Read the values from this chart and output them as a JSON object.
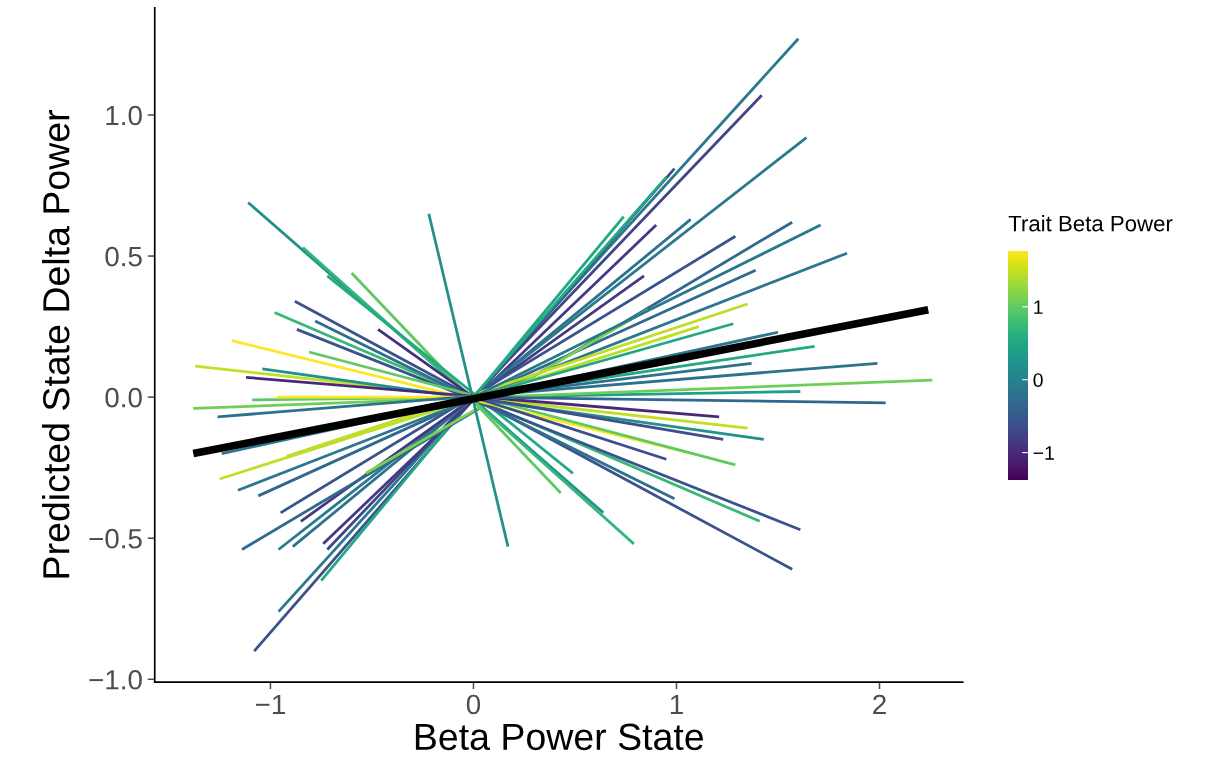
{
  "chart_data": {
    "type": "line",
    "xlabel": "Beta Power State",
    "ylabel": "Predicted State Delta Power",
    "clabel": "Trait Beta Power",
    "clim": [
      -1.38,
      1.77
    ],
    "cticks": [
      {
        "value": -1,
        "label": "−1"
      },
      0,
      1
    ],
    "xlim": [
      -1.57,
      2.41
    ],
    "ylim": [
      -1.01,
      1.38
    ],
    "xticks": [
      {
        "value": -1,
        "label": "−1"
      },
      0,
      1,
      2
    ],
    "yticks": [
      {
        "value": -1.0,
        "label": "−1.0"
      },
      {
        "value": -0.5,
        "label": "−0.5"
      },
      {
        "value": 0,
        "label": "0.0"
      },
      {
        "value": 0.5,
        "label": "0.5"
      },
      {
        "value": 1.0,
        "label": "1.0"
      }
    ],
    "grid": false,
    "legend": false,
    "line_style": "solid",
    "marker": "none",
    "series": [
      {
        "color": "#2a788e",
        "x": [
          -0.96,
          1.6
        ],
        "values": [
          -0.76,
          1.27
        ]
      },
      {
        "color": "#3c518a",
        "x": [
          -1.08,
          0.99
        ],
        "values": [
          -0.9,
          0.81
        ]
      },
      {
        "color": "#22a884",
        "x": [
          -0.75,
          0.74
        ],
        "values": [
          -0.65,
          0.64
        ]
      },
      {
        "color": "#414487",
        "x": [
          -0.72,
          1.42
        ],
        "values": [
          -0.54,
          1.07
        ]
      },
      {
        "color": "#443983",
        "x": [
          -0.74,
          0.9
        ],
        "values": [
          -0.52,
          0.61
        ]
      },
      {
        "color": "#2c728e",
        "x": [
          -0.89,
          1.07
        ],
        "values": [
          -0.53,
          0.63
        ]
      },
      {
        "color": "#29798e",
        "x": [
          -0.96,
          1.64
        ],
        "values": [
          -0.54,
          0.92
        ]
      },
      {
        "color": "#453882",
        "x": [
          -0.85,
          0.84
        ],
        "values": [
          -0.44,
          0.43
        ]
      },
      {
        "color": "#31688e",
        "x": [
          -1.14,
          1.57
        ],
        "values": [
          -0.54,
          0.62
        ]
      },
      {
        "color": "#3a538b",
        "x": [
          -0.95,
          1.29
        ],
        "values": [
          -0.41,
          0.57
        ]
      },
      {
        "color": "#30698e",
        "x": [
          -1.06,
          1.39
        ],
        "values": [
          -0.35,
          0.45
        ]
      },
      {
        "color": "#2b778e",
        "x": [
          -1.16,
          1.84
        ],
        "values": [
          -0.33,
          0.51
        ]
      },
      {
        "color": "#bddf26",
        "x": [
          -1.25,
          1.11
        ],
        "values": [
          -0.29,
          0.25
        ]
      },
      {
        "color": "#7ad151",
        "x": [
          -0.53,
          0.86
        ],
        "values": [
          -0.27,
          0.31
        ]
      },
      {
        "color": "#2a778f",
        "x": [
          -1.24,
          1.5
        ],
        "values": [
          -0.2,
          0.23
        ]
      },
      {
        "color": "#bede27",
        "x": [
          -0.92,
          1.35
        ],
        "values": [
          -0.21,
          0.33
        ]
      },
      {
        "color": "#23a983",
        "x": [
          0,
          0.95
        ],
        "values": [
          0,
          0.78
        ]
      },
      {
        "color": "#28798d",
        "x": [
          0,
          1.71
        ],
        "values": [
          0,
          0.61
        ]
      },
      {
        "color": "#21a785",
        "x": [
          0,
          1.28
        ],
        "values": [
          0,
          0.26
        ]
      },
      {
        "color": "#23a885",
        "x": [
          0,
          1.68
        ],
        "values": [
          0,
          0.18
        ]
      },
      {
        "color": "#2d718e",
        "x": [
          0,
          1.37
        ],
        "values": [
          0,
          0.12
        ]
      },
      {
        "color": "#1f9e89",
        "x": [
          0,
          1.61
        ],
        "values": [
          0,
          0.02
        ]
      },
      {
        "color": "#21918c",
        "x": [
          -1.11,
          0.64
        ],
        "values": [
          0.69,
          -0.41
        ]
      },
      {
        "color": "#35b779",
        "x": [
          -0.84,
          0.79
        ],
        "values": [
          0.53,
          -0.52
        ]
      },
      {
        "color": "#5ec962",
        "x": [
          -0.6,
          0.43
        ],
        "values": [
          0.44,
          -0.34
        ]
      },
      {
        "color": "#24aa83",
        "x": [
          -0.72,
          0.49
        ],
        "values": [
          0.43,
          -0.27
        ]
      },
      {
        "color": "#3b528b",
        "x": [
          -0.88,
          1.57
        ],
        "values": [
          0.34,
          -0.61
        ]
      },
      {
        "color": "#36b878",
        "x": [
          -0.98,
          1.41
        ],
        "values": [
          0.3,
          -0.44
        ]
      },
      {
        "color": "#2e708e",
        "x": [
          -0.78,
          0.99
        ],
        "values": [
          0.27,
          -0.36
        ]
      },
      {
        "color": "#46307e",
        "x": [
          0,
          -0.47
        ],
        "values": [
          0,
          0.24
        ]
      },
      {
        "color": "#39548b",
        "x": [
          -0.87,
          1.61
        ],
        "values": [
          0.24,
          -0.47
        ]
      },
      {
        "color": "#fde725",
        "x": [
          -1.19,
          1.08
        ],
        "values": [
          0.2,
          -0.2
        ]
      },
      {
        "color": "#5fca61",
        "x": [
          -0.81,
          1.29
        ],
        "values": [
          0.16,
          -0.24
        ]
      },
      {
        "color": "#c2df23",
        "x": [
          -1.37,
          1.35
        ],
        "values": [
          0.11,
          -0.11
        ]
      },
      {
        "color": "#20928c",
        "x": [
          -1.04,
          1.43
        ],
        "values": [
          0.1,
          -0.15
        ]
      },
      {
        "color": "#482878",
        "x": [
          -1.12,
          1.21
        ],
        "values": [
          0.07,
          -0.07
        ]
      },
      {
        "color": "#6ece58",
        "x": [
          -1.38,
          2.26
        ],
        "values": [
          -0.04,
          0.06
        ]
      },
      {
        "color": "#5dc863",
        "x": [
          0,
          -1.09
        ],
        "values": [
          0,
          -0.01
        ]
      },
      {
        "color": "#fce625",
        "x": [
          0,
          -0.97
        ],
        "values": [
          0,
          0.0
        ]
      },
      {
        "color": "#2b738d",
        "x": [
          -1.26,
          1.99
        ],
        "values": [
          -0.07,
          0.12
        ]
      },
      {
        "color": "#32678d",
        "x": [
          0,
          2.03
        ],
        "values": [
          0,
          -0.02
        ]
      },
      {
        "color": "#3e4f8a",
        "x": [
          0,
          1.23
        ],
        "values": [
          0,
          -0.15
        ]
      },
      {
        "color": "#3f4e89",
        "x": [
          0,
          0.95
        ],
        "values": [
          0,
          -0.22
        ]
      },
      {
        "color": "#22908c",
        "x": [
          -0.22,
          0.17
        ],
        "values": [
          0.65,
          -0.53
        ]
      },
      {
        "color": "#000000",
        "x": [
          -1.38,
          2.24
        ],
        "values": [
          -0.2,
          0.31
        ]
      }
    ]
  }
}
